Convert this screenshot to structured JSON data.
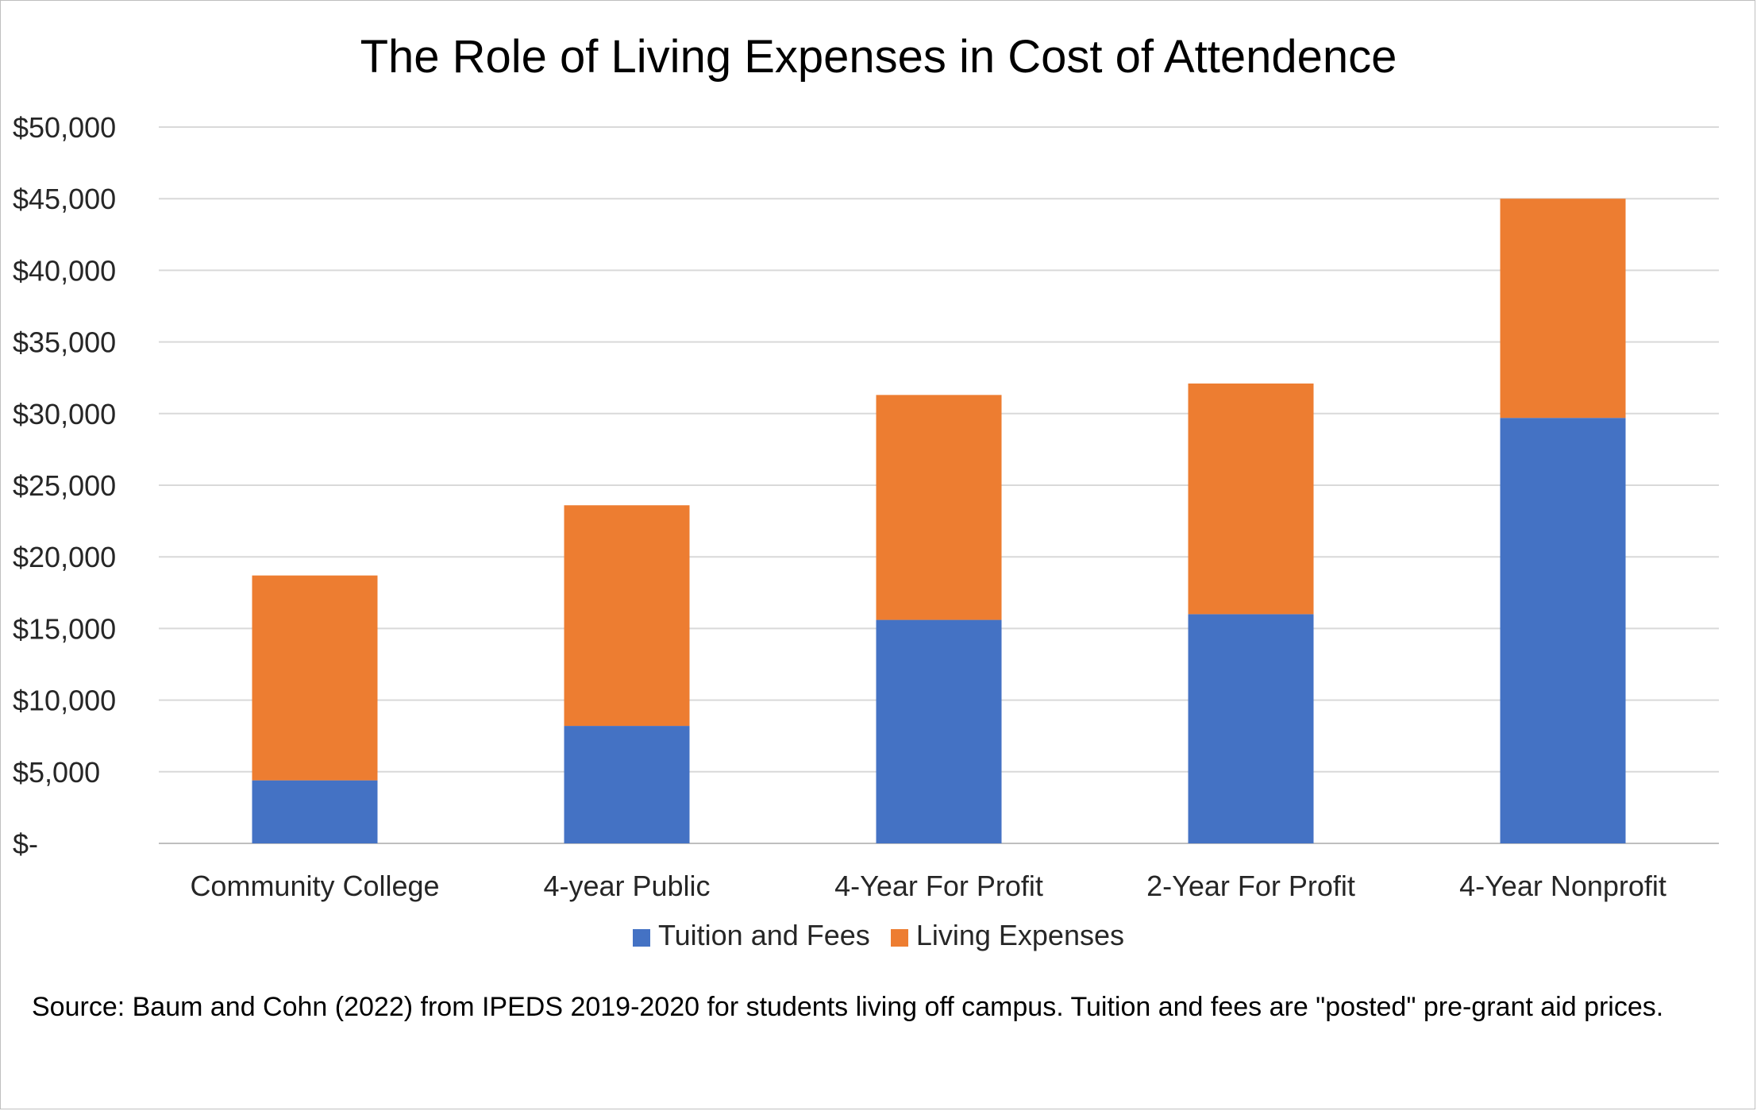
{
  "chart_data": {
    "type": "bar",
    "stacked": true,
    "title": "The Role of Living Expenses in Cost of Attendence",
    "xlabel": "",
    "ylabel": "",
    "categories": [
      "Community College",
      "4-year Public",
      "4-Year For Profit",
      "2-Year For Profit",
      "4-Year Nonprofit"
    ],
    "series": [
      {
        "name": "Tuition and Fees",
        "color": "#4472c4",
        "values": [
          4400,
          8200,
          15600,
          16000,
          29700
        ]
      },
      {
        "name": "Living Expenses",
        "color": "#ed7d31",
        "values": [
          14300,
          15400,
          15700,
          16100,
          15300
        ]
      }
    ],
    "ylim": [
      0,
      50000
    ],
    "yticks": [
      0,
      5000,
      10000,
      15000,
      20000,
      25000,
      30000,
      35000,
      40000,
      45000,
      50000
    ],
    "ytick_labels": [
      "$-",
      "$5,000",
      "$10,000",
      "$15,000",
      "$20,000",
      "$25,000",
      "$30,000",
      "$35,000",
      "$40,000",
      "$45,000",
      "$50,000"
    ],
    "grid": true,
    "legend_position": "bottom",
    "source": "Source: Baum and Cohn (2022) from IPEDS 2019-2020 for students living off campus. Tuition and fees are \"posted\" pre-grant aid prices."
  }
}
